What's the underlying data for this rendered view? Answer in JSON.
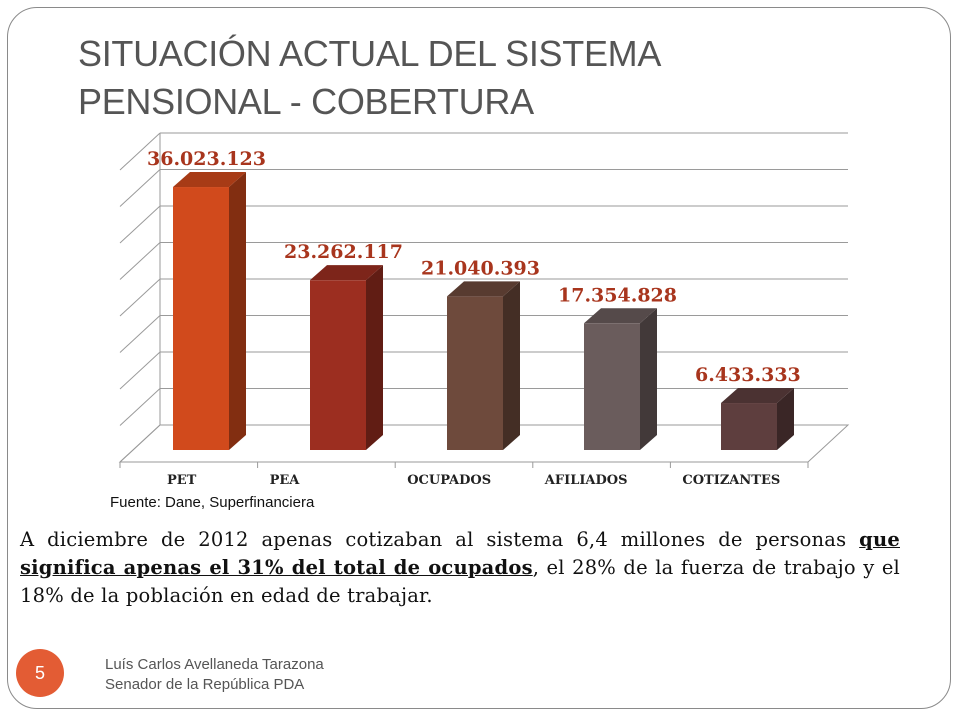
{
  "slide": {
    "title_line1": "SITUACIÓN ACTUAL DEL SISTEMA",
    "title_line2": "PENSIONAL - COBERTURA",
    "source": "Fuente: Dane, Superfinanciera",
    "body_part1": "A diciembre de 2012 apenas cotizaban al sistema  6,4 millones de personas ",
    "body_emphasis": "que significa apenas el 31% del total de ocupados",
    "body_part2": ", el 28% de la fuerza de trabajo y el 18% de la población en edad de trabajar.",
    "footer_line1": "Luís Carlos Avellaneda Tarazona",
    "footer_line2": "Senador de la República PDA",
    "slide_number": "5"
  },
  "chart_data": {
    "type": "bar",
    "categories": [
      "PET",
      "PEA",
      "OCUPADOS",
      "AFILIADOS",
      "COTIZANTES"
    ],
    "values": [
      36023123,
      23262117,
      21040393,
      17354828,
      6433333
    ],
    "data_labels": [
      "36.023.123",
      "23.262.117",
      "21.040.393",
      "17.354.828",
      "6.433.333"
    ],
    "colors": [
      "#d14a1c",
      "#9c2e20",
      "#6e4a3c",
      "#6a5c5c",
      "#5e3e3e"
    ],
    "ylim": [
      0,
      40000000
    ],
    "grid": true,
    "legend": "none"
  }
}
